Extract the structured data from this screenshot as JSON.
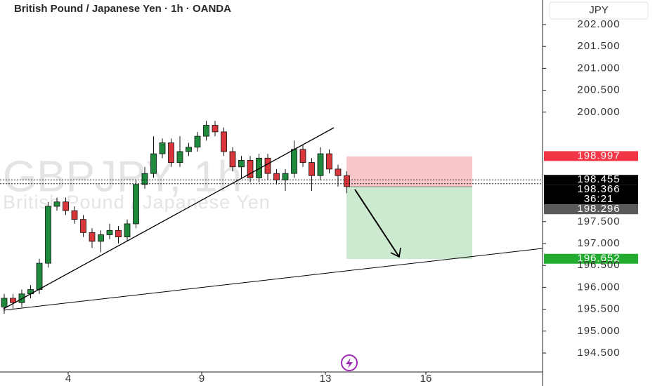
{
  "chart_data": {
    "type": "candlestick",
    "title": "British Pound / Japanese Yen · 1h · OANDA",
    "watermark": "GBPJPY, 1h",
    "watermark_subtitle": "British Pound / Japanese Yen",
    "currency": "JPY",
    "up_color": "#1f8a3c",
    "down_color": "#d8363b",
    "open": [
      195.55,
      195.75,
      195.65,
      195.85,
      195.95,
      196.55,
      197.85,
      197.95,
      197.75,
      197.55,
      197.25,
      197.05,
      197.2,
      197.3,
      197.15,
      197.45,
      198.35,
      198.6,
      199.05,
      199.3,
      198.85,
      199.1,
      199.2,
      199.45,
      199.7,
      199.55,
      199.1,
      198.75,
      198.9,
      198.5,
      198.95,
      198.6,
      198.45,
      198.6,
      199.15,
      198.85,
      198.55,
      199.05,
      198.7,
      198.55
    ],
    "high": [
      195.85,
      195.85,
      195.95,
      196.05,
      196.65,
      197.95,
      198.05,
      198.05,
      197.85,
      197.65,
      197.35,
      197.3,
      197.45,
      197.4,
      197.55,
      198.45,
      198.75,
      199.45,
      199.4,
      199.4,
      199.45,
      199.3,
      199.55,
      199.8,
      199.8,
      199.65,
      199.2,
      199.0,
      199.0,
      199.05,
      199.05,
      198.7,
      198.7,
      199.35,
      199.25,
      198.95,
      199.2,
      199.15,
      198.8,
      198.65
    ],
    "low": [
      195.4,
      195.5,
      195.55,
      195.75,
      195.85,
      196.45,
      197.75,
      197.65,
      197.45,
      197.15,
      196.9,
      196.8,
      197.1,
      197.0,
      197.05,
      197.35,
      198.25,
      198.5,
      198.95,
      198.75,
      198.75,
      199.0,
      199.1,
      199.35,
      199.45,
      199.0,
      198.65,
      198.5,
      198.4,
      198.4,
      198.45,
      198.35,
      198.2,
      198.5,
      198.75,
      198.2,
      198.45,
      198.6,
      198.3,
      198.15
    ],
    "close": [
      195.75,
      195.65,
      195.85,
      195.95,
      196.55,
      197.85,
      197.95,
      197.75,
      197.55,
      197.25,
      197.05,
      197.2,
      197.3,
      197.15,
      197.45,
      198.35,
      198.6,
      199.05,
      199.3,
      198.85,
      199.1,
      199.2,
      199.45,
      199.7,
      199.55,
      199.1,
      198.75,
      198.9,
      198.5,
      198.95,
      198.6,
      198.45,
      198.6,
      199.15,
      198.85,
      198.55,
      199.05,
      198.7,
      198.55,
      198.3
    ],
    "xlim": [
      -0.48,
      61.28
    ],
    "xticks": [
      {
        "value": 7.28,
        "label": "4"
      },
      {
        "value": 22.48,
        "label": "9"
      },
      {
        "value": 36.56,
        "label": "13"
      },
      {
        "value": 48,
        "label": "16"
      }
    ],
    "ylim": [
      194.067,
      202.561
    ],
    "yticks": [
      {
        "value": 194.5,
        "label": "194.500"
      },
      {
        "value": 195,
        "label": "195.000"
      },
      {
        "value": 195.5,
        "label": "195.500"
      },
      {
        "value": 196,
        "label": "196.000"
      },
      {
        "value": 196.5,
        "label": "196.500"
      },
      {
        "value": 197,
        "label": "197.000"
      },
      {
        "value": 197.5,
        "label": "197.500"
      },
      {
        "value": 200,
        "label": "200.000"
      },
      {
        "value": 200.5,
        "label": "200.500"
      },
      {
        "value": 201,
        "label": "201.000"
      },
      {
        "value": 201.5,
        "label": "201.500"
      },
      {
        "value": 202,
        "label": "202.000"
      }
    ],
    "price_tags": [
      {
        "value": 198.997,
        "color": "#f23645",
        "text_color": "#ffffff"
      },
      {
        "value": 198.455,
        "color": "#000000",
        "text_color": "#ffffff",
        "dotted": true
      },
      {
        "value": 198.366,
        "color": "#000000",
        "text_color": "#ffffff",
        "dotted": true,
        "countdown": "36:21"
      },
      {
        "value": 198.296,
        "color": "#5a5a5a",
        "text_color": "#ffffff"
      },
      {
        "value": 196.652,
        "color": "#22ab2e",
        "text_color": "#ffffff"
      }
    ]
  }
}
